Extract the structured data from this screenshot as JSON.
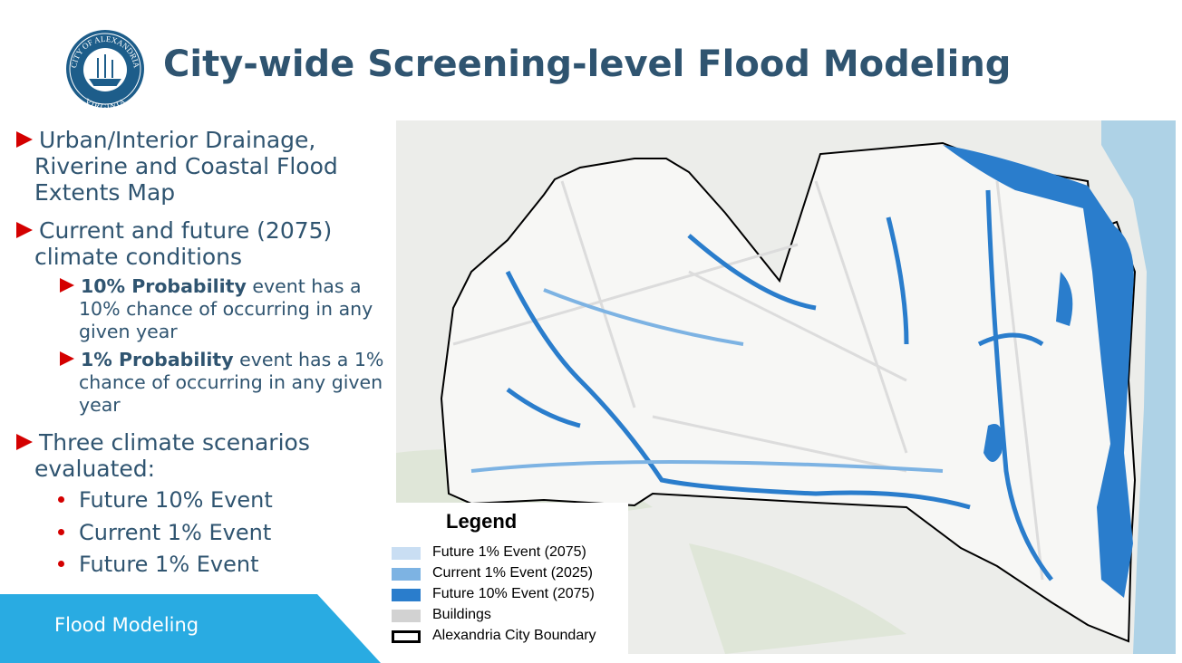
{
  "header": {
    "title": "City-wide Screening-level Flood Modeling",
    "seal": {
      "top": "CITY OF ALEXANDRIA",
      "bottom": "VIRGINIA"
    }
  },
  "bullets": [
    {
      "text": "Urban/Interior Drainage, Riverine and Coastal Flood Extents Map"
    },
    {
      "text": "Current and future (2075) climate conditions",
      "details": [
        {
          "bold": "10% Probability",
          "text": "event has a 10% chance of occurring in any given year"
        },
        {
          "bold": "1% Probability",
          "text": "event has a 1% chance of occurring in any given year"
        }
      ]
    },
    {
      "text": "Three climate scenarios evaluated:",
      "items": [
        "Future 10% Event",
        "Current 1% Event",
        "Future 1% Event"
      ]
    }
  ],
  "legend": {
    "title": "Legend",
    "items": [
      {
        "label": "Future 1% Event (2075)",
        "color": "#c9def3"
      },
      {
        "label": "Current 1% Event (2025)",
        "color": "#7db3e3"
      },
      {
        "label": "Future 10% Event (2075)",
        "color": "#2a7dcc"
      },
      {
        "label": "Buildings",
        "color": "#d2d2d2"
      },
      {
        "label": "Alexandria City Boundary",
        "color": "#000000"
      }
    ]
  },
  "footer": {
    "label": "Flood Modeling"
  }
}
